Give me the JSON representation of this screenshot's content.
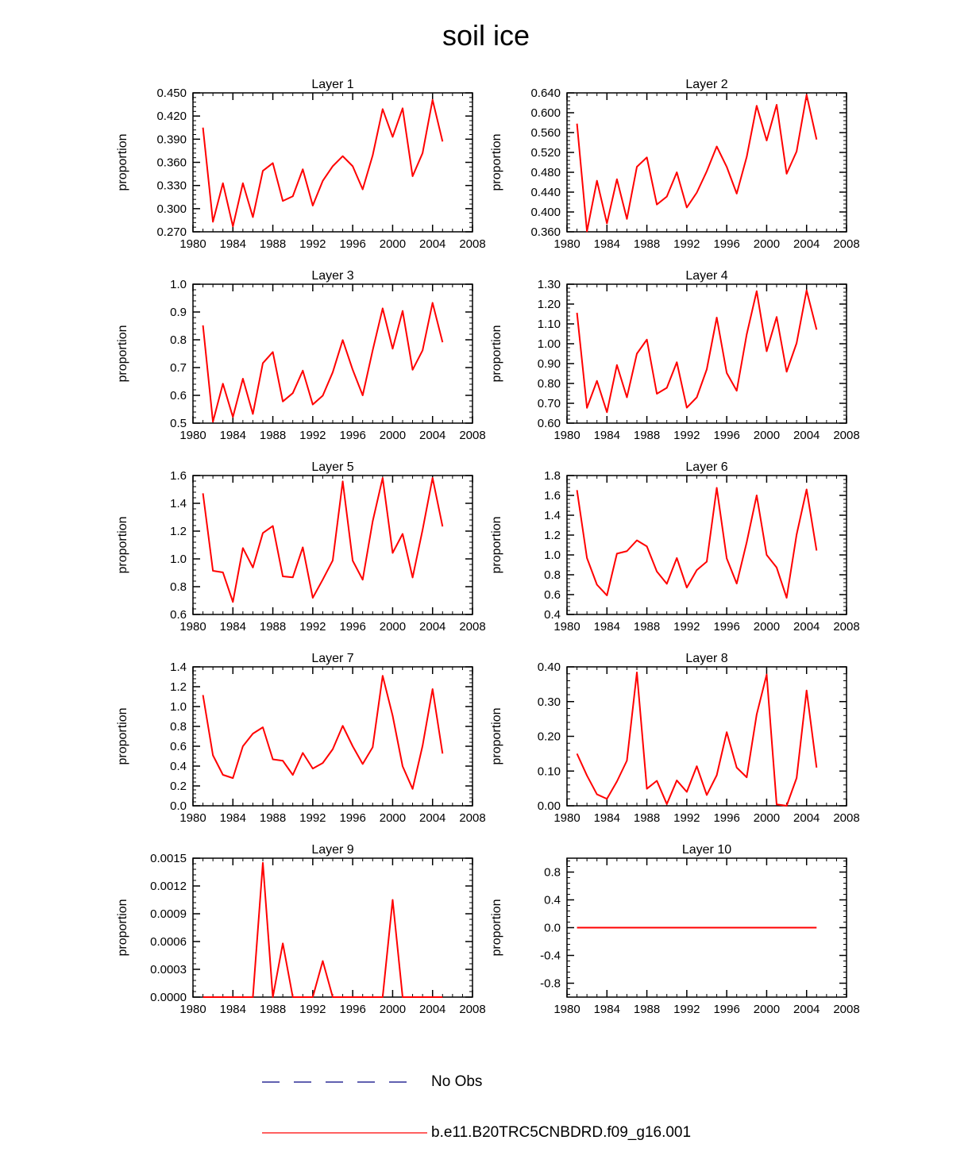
{
  "title": "soil ice",
  "colors": {
    "model_line": "#ff0000",
    "obs_line": "#000080",
    "axis": "#000000"
  },
  "legend": {
    "obs_label": "No Obs",
    "model_label": "b.e11.B20TRC5CNBDRD.f09_g16.001"
  },
  "chart_data": [
    {
      "type": "line",
      "title": "Layer 1",
      "xlabel": "",
      "ylabel": "proportion",
      "xlim": [
        1980,
        2008
      ],
      "xticks": [
        1980,
        1984,
        1988,
        1992,
        1996,
        2000,
        2004,
        2008
      ],
      "ylim": [
        0.27,
        0.45
      ],
      "yticks": [
        0.27,
        0.3,
        0.33,
        0.36,
        0.39,
        0.42,
        0.45
      ],
      "yticklabels": [
        "0.270",
        "0.300",
        "0.330",
        "0.360",
        "0.390",
        "0.420",
        "0.450"
      ],
      "series": [
        {
          "name": "b.e11.B20TRC5CNBDRD.f09_g16.001",
          "x": [
            1981,
            1982,
            1983,
            1984,
            1985,
            1986,
            1987,
            1988,
            1989,
            1990,
            1991,
            1992,
            1993,
            1994,
            1995,
            1996,
            1997,
            1998,
            1999,
            2000,
            2001,
            2002,
            2003,
            2004,
            2005
          ],
          "values": [
            0.405,
            0.283,
            0.333,
            0.277,
            0.333,
            0.289,
            0.349,
            0.359,
            0.31,
            0.316,
            0.351,
            0.304,
            0.336,
            0.355,
            0.368,
            0.355,
            0.325,
            0.369,
            0.429,
            0.393,
            0.43,
            0.342,
            0.372,
            0.441,
            0.387
          ]
        }
      ]
    },
    {
      "type": "line",
      "title": "Layer 2",
      "xlabel": "",
      "ylabel": "proportion",
      "xlim": [
        1980,
        2008
      ],
      "xticks": [
        1980,
        1984,
        1988,
        1992,
        1996,
        2000,
        2004,
        2008
      ],
      "ylim": [
        0.36,
        0.64
      ],
      "yticks": [
        0.36,
        0.4,
        0.44,
        0.48,
        0.52,
        0.56,
        0.6,
        0.64
      ],
      "yticklabels": [
        "0.360",
        "0.400",
        "0.440",
        "0.480",
        "0.520",
        "0.560",
        "0.600",
        "0.640"
      ],
      "series": [
        {
          "name": "b.e11.B20TRC5CNBDRD.f09_g16.001",
          "x": [
            1981,
            1982,
            1983,
            1984,
            1985,
            1986,
            1987,
            1988,
            1989,
            1990,
            1991,
            1992,
            1993,
            1994,
            1995,
            1996,
            1997,
            1998,
            1999,
            2000,
            2001,
            2002,
            2003,
            2004,
            2005
          ],
          "values": [
            0.578,
            0.361,
            0.463,
            0.377,
            0.466,
            0.386,
            0.491,
            0.51,
            0.415,
            0.431,
            0.48,
            0.409,
            0.439,
            0.482,
            0.532,
            0.491,
            0.437,
            0.511,
            0.614,
            0.544,
            0.616,
            0.477,
            0.522,
            0.636,
            0.546
          ]
        }
      ]
    },
    {
      "type": "line",
      "title": "Layer 3",
      "xlabel": "",
      "ylabel": "proportion",
      "xlim": [
        1980,
        2008
      ],
      "xticks": [
        1980,
        1984,
        1988,
        1992,
        1996,
        2000,
        2004,
        2008
      ],
      "ylim": [
        0.5,
        1.0
      ],
      "yticks": [
        0.5,
        0.6,
        0.7,
        0.8,
        0.9,
        1.0
      ],
      "yticklabels": [
        "0.5",
        "0.6",
        "0.7",
        "0.8",
        "0.9",
        "1.0"
      ],
      "series": [
        {
          "name": "b.e11.B20TRC5CNBDRD.f09_g16.001",
          "x": [
            1981,
            1982,
            1983,
            1984,
            1985,
            1986,
            1987,
            1988,
            1989,
            1990,
            1991,
            1992,
            1993,
            1994,
            1995,
            1996,
            1997,
            1998,
            1999,
            2000,
            2001,
            2002,
            2003,
            2004,
            2005
          ],
          "values": [
            0.852,
            0.505,
            0.642,
            0.522,
            0.66,
            0.533,
            0.716,
            0.756,
            0.578,
            0.608,
            0.689,
            0.567,
            0.599,
            0.683,
            0.799,
            0.692,
            0.6,
            0.762,
            0.913,
            0.768,
            0.904,
            0.692,
            0.762,
            0.933,
            0.791
          ]
        }
      ]
    },
    {
      "type": "line",
      "title": "Layer 4",
      "xlabel": "",
      "ylabel": "proportion",
      "xlim": [
        1980,
        2008
      ],
      "xticks": [
        1980,
        1984,
        1988,
        1992,
        1996,
        2000,
        2004,
        2008
      ],
      "ylim": [
        0.6,
        1.3
      ],
      "yticks": [
        0.6,
        0.7,
        0.8,
        0.9,
        1.0,
        1.1,
        1.2,
        1.3
      ],
      "yticklabels": [
        "0.60",
        "0.70",
        "0.80",
        "0.90",
        "1.00",
        "1.10",
        "1.20",
        "1.30"
      ],
      "series": [
        {
          "name": "b.e11.B20TRC5CNBDRD.f09_g16.001",
          "x": [
            1981,
            1982,
            1983,
            1984,
            1985,
            1986,
            1987,
            1988,
            1989,
            1990,
            1991,
            1992,
            1993,
            1994,
            1995,
            1996,
            1997,
            1998,
            1999,
            2000,
            2001,
            2002,
            2003,
            2004,
            2005
          ],
          "values": [
            1.156,
            0.677,
            0.813,
            0.655,
            0.893,
            0.73,
            0.95,
            1.021,
            0.748,
            0.778,
            0.907,
            0.678,
            0.73,
            0.871,
            1.132,
            0.853,
            0.763,
            1.047,
            1.265,
            0.962,
            1.135,
            0.859,
            1.003,
            1.269,
            1.071
          ]
        }
      ]
    },
    {
      "type": "line",
      "title": "Layer 5",
      "xlabel": "",
      "ylabel": "proportion",
      "xlim": [
        1980,
        2008
      ],
      "xticks": [
        1980,
        1984,
        1988,
        1992,
        1996,
        2000,
        2004,
        2008
      ],
      "ylim": [
        0.6,
        1.6
      ],
      "yticks": [
        0.6,
        0.8,
        1.0,
        1.2,
        1.4,
        1.6
      ],
      "yticklabels": [
        "0.6",
        "0.8",
        "1.0",
        "1.2",
        "1.4",
        "1.6"
      ],
      "series": [
        {
          "name": "b.e11.B20TRC5CNBDRD.f09_g16.001",
          "x": [
            1981,
            1982,
            1983,
            1984,
            1985,
            1986,
            1987,
            1988,
            1989,
            1990,
            1991,
            1992,
            1993,
            1994,
            1995,
            1996,
            1997,
            1998,
            1999,
            2000,
            2001,
            2002,
            2003,
            2004,
            2005
          ],
          "values": [
            1.472,
            0.914,
            0.903,
            0.69,
            1.078,
            0.938,
            1.186,
            1.237,
            0.874,
            0.867,
            1.083,
            0.72,
            0.851,
            0.989,
            1.558,
            0.987,
            0.85,
            1.27,
            1.583,
            1.043,
            1.18,
            0.866,
            1.209,
            1.583,
            1.233
          ]
        }
      ]
    },
    {
      "type": "line",
      "title": "Layer 6",
      "xlabel": "",
      "ylabel": "proportion",
      "xlim": [
        1980,
        2008
      ],
      "xticks": [
        1980,
        1984,
        1988,
        1992,
        1996,
        2000,
        2004,
        2008
      ],
      "ylim": [
        0.4,
        1.8
      ],
      "yticks": [
        0.4,
        0.6,
        0.8,
        1.0,
        1.2,
        1.4,
        1.6,
        1.8
      ],
      "yticklabels": [
        "0.4",
        "0.6",
        "0.8",
        "1.0",
        "1.2",
        "1.4",
        "1.6",
        "1.8"
      ],
      "series": [
        {
          "name": "b.e11.B20TRC5CNBDRD.f09_g16.001",
          "x": [
            1981,
            1982,
            1983,
            1984,
            1985,
            1986,
            1987,
            1988,
            1989,
            1990,
            1991,
            1992,
            1993,
            1994,
            1995,
            1996,
            1997,
            1998,
            1999,
            2000,
            2001,
            2002,
            2003,
            2004,
            2005
          ],
          "values": [
            1.653,
            0.969,
            0.7,
            0.592,
            1.013,
            1.038,
            1.147,
            1.086,
            0.833,
            0.709,
            0.969,
            0.671,
            0.847,
            0.932,
            1.676,
            0.965,
            0.711,
            1.127,
            1.6,
            1.0,
            0.873,
            0.568,
            1.205,
            1.66,
            1.044
          ]
        }
      ]
    },
    {
      "type": "line",
      "title": "Layer 7",
      "xlabel": "",
      "ylabel": "proportion",
      "xlim": [
        1980,
        2008
      ],
      "xticks": [
        1980,
        1984,
        1988,
        1992,
        1996,
        2000,
        2004,
        2008
      ],
      "ylim": [
        0.0,
        1.4
      ],
      "yticks": [
        0.0,
        0.2,
        0.4,
        0.6,
        0.8,
        1.0,
        1.2,
        1.4
      ],
      "yticklabels": [
        "0.0",
        "0.2",
        "0.4",
        "0.6",
        "0.8",
        "1.0",
        "1.2",
        "1.4"
      ],
      "series": [
        {
          "name": "b.e11.B20TRC5CNBDRD.f09_g16.001",
          "x": [
            1981,
            1982,
            1983,
            1984,
            1985,
            1986,
            1987,
            1988,
            1989,
            1990,
            1991,
            1992,
            1993,
            1994,
            1995,
            1996,
            1997,
            1998,
            1999,
            2000,
            2001,
            2002,
            2003,
            2004,
            2005
          ],
          "values": [
            1.116,
            0.509,
            0.312,
            0.279,
            0.6,
            0.727,
            0.791,
            0.468,
            0.454,
            0.311,
            0.533,
            0.375,
            0.431,
            0.57,
            0.806,
            0.6,
            0.421,
            0.59,
            1.31,
            0.908,
            0.398,
            0.17,
            0.605,
            1.176,
            0.526
          ]
        }
      ]
    },
    {
      "type": "line",
      "title": "Layer 8",
      "xlabel": "",
      "ylabel": "proportion",
      "xlim": [
        1980,
        2008
      ],
      "xticks": [
        1980,
        1984,
        1988,
        1992,
        1996,
        2000,
        2004,
        2008
      ],
      "ylim": [
        0.0,
        0.4
      ],
      "yticks": [
        0.0,
        0.1,
        0.2,
        0.3,
        0.4
      ],
      "yticklabels": [
        "0.00",
        "0.10",
        "0.20",
        "0.30",
        "0.40"
      ],
      "series": [
        {
          "name": "b.e11.B20TRC5CNBDRD.f09_g16.001",
          "x": [
            1981,
            1982,
            1983,
            1984,
            1985,
            1986,
            1987,
            1988,
            1989,
            1990,
            1991,
            1992,
            1993,
            1994,
            1995,
            1996,
            1997,
            1998,
            1999,
            2000,
            2001,
            2002,
            2003,
            2004,
            2005
          ],
          "values": [
            0.15,
            0.087,
            0.033,
            0.02,
            0.07,
            0.13,
            0.384,
            0.049,
            0.072,
            0.005,
            0.073,
            0.04,
            0.114,
            0.031,
            0.088,
            0.212,
            0.11,
            0.082,
            0.263,
            0.378,
            0.004,
            0.0,
            0.08,
            0.332,
            0.11
          ]
        }
      ]
    },
    {
      "type": "line",
      "title": "Layer 9",
      "xlabel": "",
      "ylabel": "proportion",
      "xlim": [
        1980,
        2008
      ],
      "xticks": [
        1980,
        1984,
        1988,
        1992,
        1996,
        2000,
        2004,
        2008
      ],
      "ylim": [
        0.0,
        0.0015
      ],
      "yticks": [
        0.0,
        0.0003,
        0.0006,
        0.0009,
        0.0012,
        0.0015
      ],
      "yticklabels": [
        "0.0000",
        "0.0003",
        "0.0006",
        "0.0009",
        "0.0012",
        "0.0015"
      ],
      "series": [
        {
          "name": "b.e11.B20TRC5CNBDRD.f09_g16.001",
          "x": [
            1981,
            1982,
            1983,
            1984,
            1985,
            1986,
            1987,
            1988,
            1989,
            1990,
            1991,
            1992,
            1993,
            1994,
            1995,
            1996,
            1997,
            1998,
            1999,
            2000,
            2001,
            2002,
            2003,
            2004,
            2005
          ],
          "values": [
            0,
            0,
            0,
            0,
            0,
            0,
            0.00145,
            0,
            0.00058,
            0,
            0,
            0,
            0.00039,
            0,
            0,
            0,
            0,
            0,
            0,
            0.00105,
            0,
            0,
            0,
            0,
            0
          ]
        }
      ]
    },
    {
      "type": "line",
      "title": "Layer 10",
      "xlabel": "",
      "ylabel": "proportion",
      "xlim": [
        1980,
        2008
      ],
      "xticks": [
        1980,
        1984,
        1988,
        1992,
        1996,
        2000,
        2004,
        2008
      ],
      "ylim": [
        -1.0,
        1.0
      ],
      "yticks": [
        -0.8,
        -0.4,
        0.0,
        0.4,
        0.8
      ],
      "yticklabels": [
        "-0.8",
        "-0.4",
        "0.0",
        "0.4",
        "0.8"
      ],
      "series": [
        {
          "name": "b.e11.B20TRC5CNBDRD.f09_g16.001",
          "x": [
            1981,
            1982,
            1983,
            1984,
            1985,
            1986,
            1987,
            1988,
            1989,
            1990,
            1991,
            1992,
            1993,
            1994,
            1995,
            1996,
            1997,
            1998,
            1999,
            2000,
            2001,
            2002,
            2003,
            2004,
            2005
          ],
          "values": [
            0,
            0,
            0,
            0,
            0,
            0,
            0,
            0,
            0,
            0,
            0,
            0,
            0,
            0,
            0,
            0,
            0,
            0,
            0,
            0,
            0,
            0,
            0,
            0,
            0
          ]
        }
      ]
    }
  ]
}
